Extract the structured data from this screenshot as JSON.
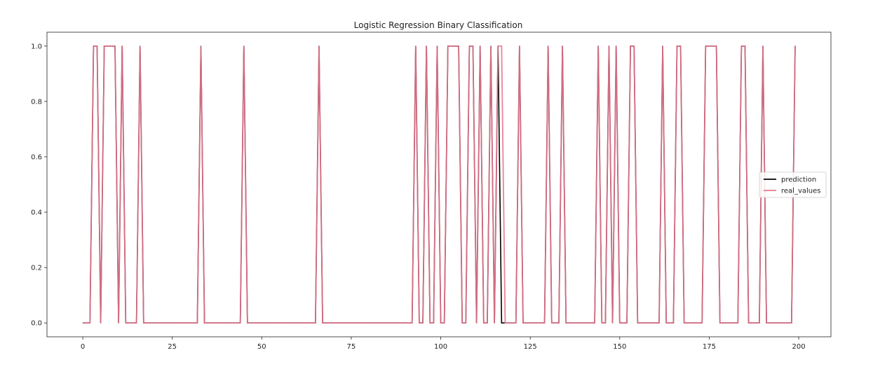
{
  "chart_data": {
    "type": "line",
    "title": "Logistic Regression Binary Classification",
    "xlabel": "",
    "ylabel": "",
    "xlim": [
      -10,
      209
    ],
    "ylim": [
      -0.05,
      1.05
    ],
    "xticks": [
      0,
      25,
      50,
      75,
      100,
      125,
      150,
      175,
      200
    ],
    "yticks": [
      0.0,
      0.2,
      0.4,
      0.6,
      0.8,
      1.0
    ],
    "xtick_labels": [
      "0",
      "25",
      "50",
      "75",
      "100",
      "125",
      "150",
      "175",
      "200"
    ],
    "ytick_labels": [
      "0.0",
      "0.2",
      "0.4",
      "0.6",
      "0.8",
      "1.0"
    ],
    "grid": false,
    "legend_position": "center-right",
    "x": [
      0,
      1,
      2,
      3,
      4,
      5,
      6,
      7,
      8,
      9,
      10,
      11,
      12,
      13,
      14,
      15,
      16,
      17,
      18,
      19,
      20,
      21,
      22,
      23,
      24,
      25,
      26,
      27,
      28,
      29,
      30,
      31,
      32,
      33,
      34,
      35,
      36,
      37,
      38,
      39,
      40,
      41,
      42,
      43,
      44,
      45,
      46,
      47,
      48,
      49,
      50,
      51,
      52,
      53,
      54,
      55,
      56,
      57,
      58,
      59,
      60,
      61,
      62,
      63,
      64,
      65,
      66,
      67,
      68,
      69,
      70,
      71,
      72,
      73,
      74,
      75,
      76,
      77,
      78,
      79,
      80,
      81,
      82,
      83,
      84,
      85,
      86,
      87,
      88,
      89,
      90,
      91,
      92,
      93,
      94,
      95,
      96,
      97,
      98,
      99,
      100,
      101,
      102,
      103,
      104,
      105,
      106,
      107,
      108,
      109,
      110,
      111,
      112,
      113,
      114,
      115,
      116,
      117,
      118,
      119,
      120,
      121,
      122,
      123,
      124,
      125,
      126,
      127,
      128,
      129,
      130,
      131,
      132,
      133,
      134,
      135,
      136,
      137,
      138,
      139,
      140,
      141,
      142,
      143,
      144,
      145,
      146,
      147,
      148,
      149,
      150,
      151,
      152,
      153,
      154,
      155,
      156,
      157,
      158,
      159,
      160,
      161,
      162,
      163,
      164,
      165,
      166,
      167,
      168,
      169,
      170,
      171,
      172,
      173,
      174,
      175,
      176,
      177,
      178,
      179,
      180,
      181,
      182,
      183,
      184,
      185,
      186,
      187,
      188,
      189,
      190,
      191,
      192,
      193,
      194,
      195,
      196,
      197,
      198,
      199
    ],
    "series": [
      {
        "name": "prediction",
        "color": "#000000",
        "values": [
          0,
          0,
          0,
          1,
          1,
          0,
          1,
          1,
          1,
          1,
          0,
          1,
          0,
          0,
          0,
          0,
          1,
          0,
          0,
          0,
          0,
          0,
          0,
          0,
          0,
          0,
          0,
          0,
          0,
          0,
          0,
          0,
          0,
          1,
          0,
          0,
          0,
          0,
          0,
          0,
          0,
          0,
          0,
          0,
          0,
          1,
          0,
          0,
          0,
          0,
          0,
          0,
          0,
          0,
          0,
          0,
          0,
          0,
          0,
          0,
          0,
          0,
          0,
          0,
          0,
          0,
          1,
          0,
          0,
          0,
          0,
          0,
          0,
          0,
          0,
          0,
          0,
          0,
          0,
          0,
          0,
          0,
          0,
          0,
          0,
          0,
          0,
          0,
          0,
          0,
          0,
          0,
          0,
          1,
          0,
          0,
          1,
          0,
          0,
          1,
          0,
          0,
          1,
          1,
          1,
          1,
          0,
          0,
          1,
          1,
          0,
          1,
          0,
          0,
          1,
          0,
          1,
          0,
          0,
          0,
          0,
          0,
          1,
          0,
          0,
          0,
          0,
          0,
          0,
          0,
          1,
          0,
          0,
          0,
          1,
          0,
          0,
          0,
          0,
          0,
          0,
          0,
          0,
          0,
          1,
          0,
          0,
          1,
          0,
          1,
          0,
          0,
          0,
          1,
          1,
          0,
          0,
          0,
          0,
          0,
          0,
          0,
          1,
          0,
          0,
          0,
          1,
          1,
          0,
          0,
          0,
          0,
          0,
          0,
          1,
          1,
          1,
          1,
          0,
          0,
          0,
          0,
          0,
          0,
          1,
          1,
          0,
          0,
          0,
          0,
          1,
          0,
          0,
          0,
          0,
          0,
          0,
          0,
          0,
          1
        ]
      },
      {
        "name": "real_values",
        "color": "#e8778f",
        "values": [
          0,
          0,
          0,
          1,
          1,
          0,
          1,
          1,
          1,
          1,
          0,
          1,
          0,
          0,
          0,
          0,
          1,
          0,
          0,
          0,
          0,
          0,
          0,
          0,
          0,
          0,
          0,
          0,
          0,
          0,
          0,
          0,
          0,
          1,
          0,
          0,
          0,
          0,
          0,
          0,
          0,
          0,
          0,
          0,
          0,
          1,
          0,
          0,
          0,
          0,
          0,
          0,
          0,
          0,
          0,
          0,
          0,
          0,
          0,
          0,
          0,
          0,
          0,
          0,
          0,
          0,
          1,
          0,
          0,
          0,
          0,
          0,
          0,
          0,
          0,
          0,
          0,
          0,
          0,
          0,
          0,
          0,
          0,
          0,
          0,
          0,
          0,
          0,
          0,
          0,
          0,
          0,
          0,
          1,
          0,
          0,
          1,
          0,
          0,
          1,
          0,
          0,
          1,
          1,
          1,
          1,
          0,
          0,
          1,
          1,
          0,
          1,
          0,
          0,
          1,
          0,
          1,
          1,
          0,
          0,
          0,
          0,
          1,
          0,
          0,
          0,
          0,
          0,
          0,
          0,
          1,
          0,
          0,
          0,
          1,
          0,
          0,
          0,
          0,
          0,
          0,
          0,
          0,
          0,
          1,
          0,
          0,
          1,
          0,
          1,
          0,
          0,
          0,
          1,
          1,
          0,
          0,
          0,
          0,
          0,
          0,
          0,
          1,
          0,
          0,
          0,
          1,
          1,
          0,
          0,
          0,
          0,
          0,
          0,
          1,
          1,
          1,
          1,
          0,
          0,
          0,
          0,
          0,
          0,
          1,
          1,
          0,
          0,
          0,
          0,
          1,
          0,
          0,
          0,
          0,
          0,
          0,
          0,
          0,
          1
        ]
      }
    ]
  }
}
